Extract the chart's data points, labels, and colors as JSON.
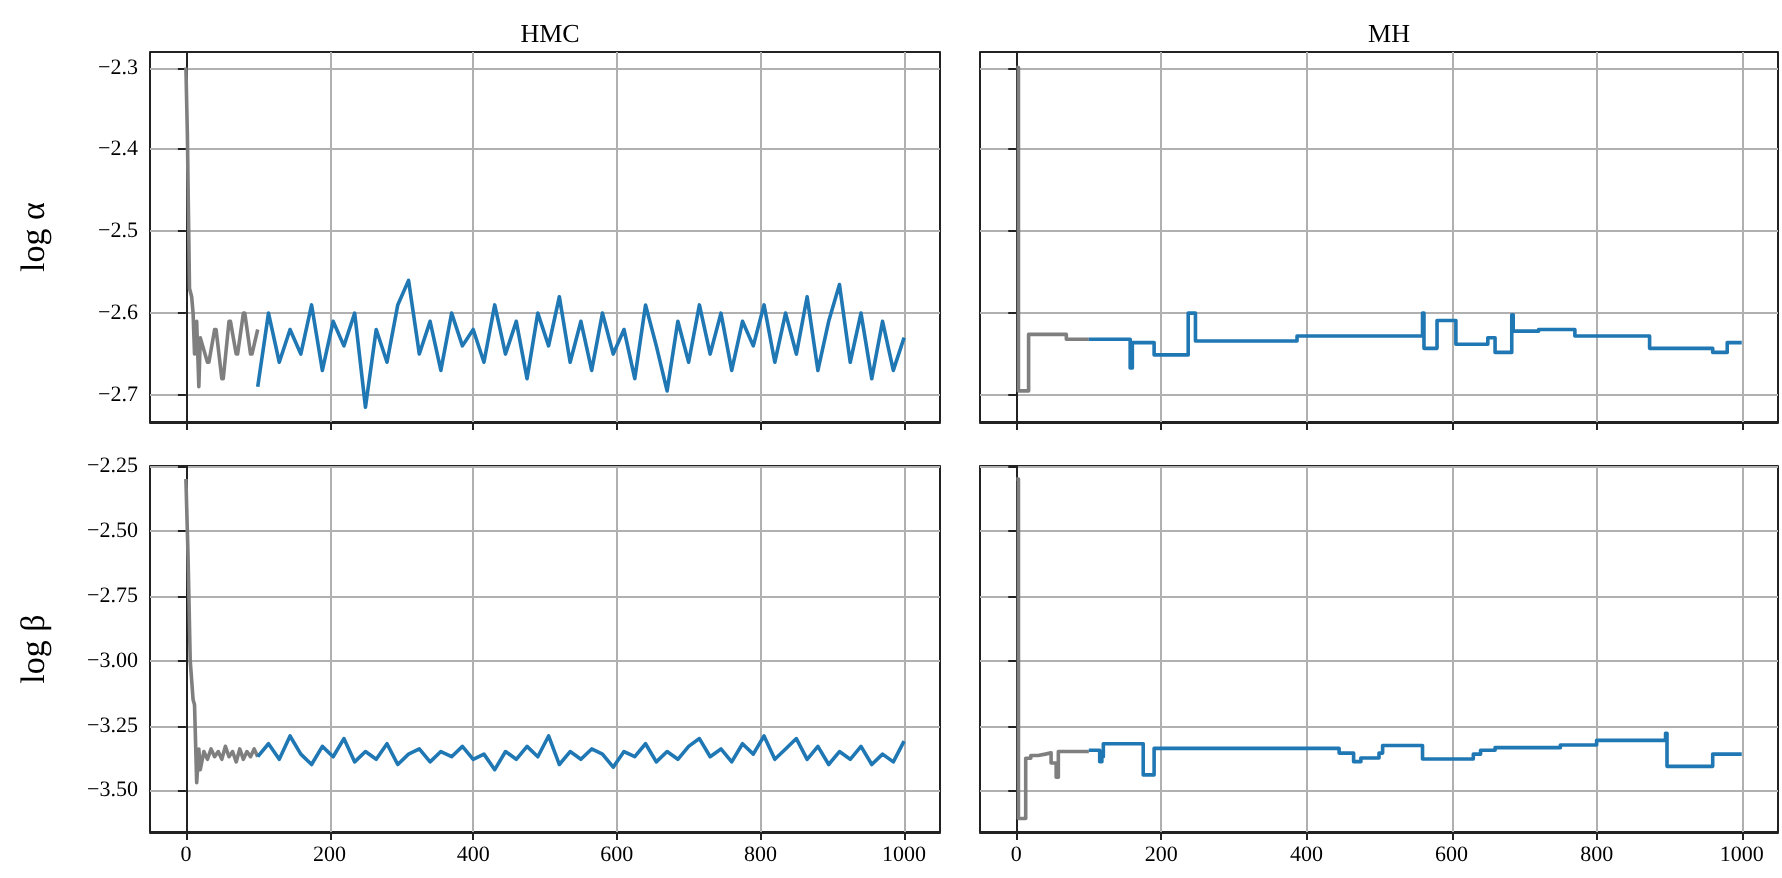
{
  "chart_data": [
    {
      "type": "line",
      "title": "HMC",
      "ylabel": "log α",
      "xlim": [
        -50,
        1050
      ],
      "ylim": [
        -2.733,
        -2.281
      ],
      "xticks": [
        0,
        200,
        400,
        600,
        800,
        1000
      ],
      "yticks": [
        {
          "value": -2.3,
          "label": "−2.3"
        },
        {
          "value": -2.4,
          "label": "−2.4"
        },
        {
          "value": -2.5,
          "label": "−2.5"
        },
        {
          "value": -2.6,
          "label": "−2.6"
        },
        {
          "value": -2.7,
          "label": "−2.7"
        }
      ],
      "grid": true,
      "tick_labels": "y",
      "series": [
        {
          "color": "#7f7f7f",
          "x": [
            0,
            2,
            5,
            8,
            10,
            12,
            15,
            18,
            19,
            20,
            30,
            32,
            40,
            42,
            50,
            52,
            60,
            62,
            70,
            72,
            80,
            82,
            90,
            92,
            100
          ],
          "values": [
            -2.3,
            -2.38,
            -2.57,
            -2.58,
            -2.6,
            -2.65,
            -2.61,
            -2.69,
            -2.69,
            -2.63,
            -2.66,
            -2.66,
            -2.62,
            -2.62,
            -2.68,
            -2.68,
            -2.61,
            -2.61,
            -2.65,
            -2.65,
            -2.6,
            -2.6,
            -2.65,
            -2.65,
            -2.62
          ]
        },
        {
          "color": "#1f77b4",
          "x": [
            100,
            115,
            130,
            145,
            160,
            175,
            190,
            205,
            220,
            235,
            250,
            265,
            280,
            295,
            310,
            325,
            340,
            355,
            370,
            385,
            400,
            415,
            430,
            445,
            460,
            475,
            490,
            505,
            520,
            535,
            550,
            565,
            580,
            595,
            610,
            625,
            640,
            655,
            670,
            685,
            700,
            715,
            730,
            745,
            760,
            775,
            790,
            805,
            820,
            835,
            850,
            865,
            880,
            895,
            910,
            925,
            940,
            955,
            970,
            985,
            1000
          ],
          "values": [
            -2.69,
            -2.6,
            -2.66,
            -2.62,
            -2.65,
            -2.59,
            -2.67,
            -2.61,
            -2.64,
            -2.6,
            -2.715,
            -2.62,
            -2.66,
            -2.59,
            -2.56,
            -2.65,
            -2.61,
            -2.67,
            -2.6,
            -2.64,
            -2.62,
            -2.66,
            -2.59,
            -2.65,
            -2.61,
            -2.68,
            -2.6,
            -2.64,
            -2.58,
            -2.66,
            -2.61,
            -2.67,
            -2.6,
            -2.65,
            -2.62,
            -2.68,
            -2.59,
            -2.64,
            -2.695,
            -2.61,
            -2.66,
            -2.59,
            -2.65,
            -2.6,
            -2.67,
            -2.61,
            -2.64,
            -2.59,
            -2.66,
            -2.6,
            -2.65,
            -2.58,
            -2.67,
            -2.61,
            -2.565,
            -2.66,
            -2.6,
            -2.68,
            -2.61,
            -2.67,
            -2.63
          ]
        }
      ]
    },
    {
      "type": "step",
      "title": "MH",
      "xlim": [
        -50,
        1050
      ],
      "ylim": [
        -2.733,
        -2.281
      ],
      "xticks": [
        0,
        200,
        400,
        600,
        800,
        1000
      ],
      "yticks": [
        -2.3,
        -2.4,
        -2.5,
        -2.6,
        -2.7
      ],
      "grid": true,
      "tick_labels": false,
      "series": [
        {
          "color": "#7f7f7f",
          "x": [
            0,
            3,
            17,
            69,
            100
          ],
          "values": [
            -2.3,
            -2.695,
            -2.626,
            -2.632,
            -2.632
          ]
        },
        {
          "color": "#1f77b4",
          "x": [
            100,
            157,
            160,
            190,
            237,
            247,
            387,
            560,
            562,
            580,
            606,
            650,
            660,
            683,
            685,
            720,
            770,
            873,
            960,
            980,
            1000
          ],
          "values": [
            -2.632,
            -2.667,
            -2.636,
            -2.651,
            -2.6,
            -2.634,
            -2.628,
            -2.6,
            -2.643,
            -2.609,
            -2.638,
            -2.63,
            -2.648,
            -2.602,
            -2.622,
            -2.62,
            -2.628,
            -2.643,
            -2.648,
            -2.636,
            -2.636
          ]
        }
      ]
    },
    {
      "type": "line",
      "ylabel": "log β",
      "xlim": [
        -50,
        1050
      ],
      "ylim": [
        -3.66,
        -2.25
      ],
      "xticks": [
        0,
        200,
        400,
        600,
        800,
        1000
      ],
      "yticks": [
        {
          "value": -2.25,
          "label": "−2.25"
        },
        {
          "value": -2.5,
          "label": "−2.50"
        },
        {
          "value": -2.75,
          "label": "−2.75"
        },
        {
          "value": -3.0,
          "label": "−3.00"
        },
        {
          "value": -3.25,
          "label": "−3.25"
        },
        {
          "value": -3.5,
          "label": "−3.50"
        }
      ],
      "grid": true,
      "series": [
        {
          "color": "#7f7f7f",
          "x": [
            0,
            3,
            6,
            10,
            12,
            15,
            16,
            18,
            20,
            25,
            30,
            35,
            40,
            45,
            50,
            55,
            60,
            65,
            70,
            75,
            80,
            85,
            90,
            95,
            100
          ],
          "values": [
            -2.3,
            -2.6,
            -3.0,
            -3.15,
            -3.17,
            -3.47,
            -3.47,
            -3.34,
            -3.42,
            -3.35,
            -3.38,
            -3.34,
            -3.37,
            -3.35,
            -3.38,
            -3.33,
            -3.37,
            -3.35,
            -3.39,
            -3.34,
            -3.38,
            -3.35,
            -3.37,
            -3.34,
            -3.37
          ]
        },
        {
          "color": "#1f77b4",
          "x": [
            100,
            115,
            130,
            145,
            160,
            175,
            190,
            205,
            220,
            235,
            250,
            265,
            280,
            295,
            310,
            325,
            340,
            355,
            370,
            385,
            400,
            415,
            430,
            445,
            460,
            475,
            490,
            505,
            520,
            535,
            550,
            565,
            580,
            595,
            610,
            625,
            640,
            655,
            670,
            685,
            700,
            715,
            730,
            745,
            760,
            775,
            790,
            805,
            820,
            835,
            850,
            865,
            880,
            895,
            910,
            925,
            940,
            955,
            970,
            985,
            1000
          ],
          "values": [
            -3.37,
            -3.32,
            -3.38,
            -3.29,
            -3.36,
            -3.4,
            -3.33,
            -3.37,
            -3.3,
            -3.39,
            -3.35,
            -3.38,
            -3.32,
            -3.4,
            -3.36,
            -3.34,
            -3.39,
            -3.35,
            -3.37,
            -3.33,
            -3.38,
            -3.36,
            -3.42,
            -3.35,
            -3.38,
            -3.33,
            -3.37,
            -3.29,
            -3.4,
            -3.35,
            -3.38,
            -3.34,
            -3.36,
            -3.41,
            -3.35,
            -3.37,
            -3.32,
            -3.39,
            -3.35,
            -3.38,
            -3.33,
            -3.3,
            -3.37,
            -3.34,
            -3.39,
            -3.32,
            -3.36,
            -3.29,
            -3.38,
            -3.34,
            -3.3,
            -3.38,
            -3.33,
            -3.4,
            -3.35,
            -3.38,
            -3.33,
            -3.4,
            -3.36,
            -3.39,
            -3.31
          ]
        }
      ]
    },
    {
      "type": "step",
      "xlim": [
        -50,
        1050
      ],
      "ylim": [
        -3.66,
        -2.25
      ],
      "xticks": [
        0,
        200,
        400,
        600,
        800,
        1000
      ],
      "yticks": [
        -2.25,
        -2.5,
        -2.75,
        -3.0,
        -3.25,
        -3.5
      ],
      "grid": true,
      "tick_labels": "x",
      "series": [
        {
          "color": "#7f7f7f",
          "x": [
            0,
            3,
            13,
            20,
            30,
            40,
            48,
            55,
            58,
            100
          ],
          "values": [
            -2.3,
            -3.608,
            -3.376,
            -3.365,
            -3.36,
            -3.355,
            -3.394,
            -3.449,
            -3.35,
            -3.345
          ]
        },
        {
          "color": "#1f77b4",
          "x": [
            100,
            115,
            118,
            120,
            175,
            190,
            445,
            465,
            475,
            500,
            505,
            560,
            630,
            640,
            660,
            750,
            800,
            895,
            897,
            960,
            1000
          ],
          "values": [
            -3.345,
            -3.389,
            -3.37,
            -3.32,
            -3.44,
            -3.338,
            -3.356,
            -3.389,
            -3.375,
            -3.356,
            -3.327,
            -3.379,
            -3.36,
            -3.345,
            -3.335,
            -3.325,
            -3.307,
            -3.28,
            -3.407,
            -3.36,
            -3.36
          ]
        }
      ]
    }
  ]
}
